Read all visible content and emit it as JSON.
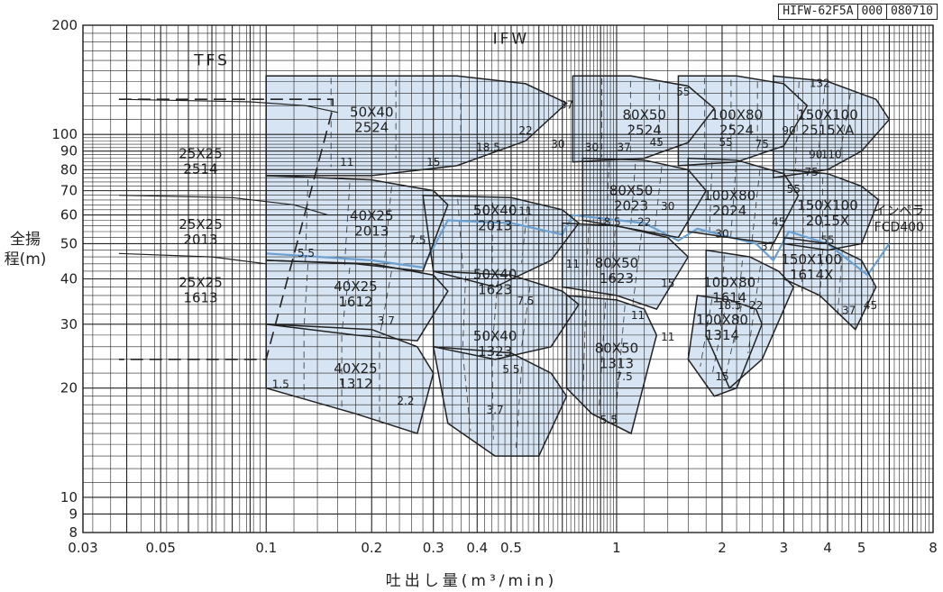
{
  "chart_data": {
    "type": "area",
    "drawing_code": [
      "HIFW-62F5A",
      "000",
      "080710"
    ],
    "ylabel": "全揚程(m)",
    "xlabel": "吐出し量(m³/min)",
    "x_scale": "log",
    "y_scale": "log",
    "xlim": [
      0.03,
      8
    ],
    "ylim": [
      8,
      200
    ],
    "grid": true,
    "x_ticks": [
      0.03,
      0.05,
      0.1,
      0.2,
      0.3,
      0.4,
      0.5,
      1,
      2,
      3,
      4,
      5,
      8
    ],
    "x_tick_labels": [
      "0.03",
      "0.05",
      "0.1",
      "0.2",
      "0.3",
      "0.4",
      "0.5",
      "1",
      "2",
      "3",
      "4",
      "5",
      "8"
    ],
    "y_ticks": [
      8,
      9,
      10,
      20,
      30,
      40,
      50,
      60,
      70,
      80,
      90,
      100,
      200
    ],
    "y_tick_labels": [
      "8",
      "9",
      "10",
      "20",
      "30",
      "40",
      "50",
      "60",
      "70",
      "80",
      "90",
      "100",
      "200"
    ],
    "series_labels": [
      "TFS",
      "IFW"
    ],
    "note": [
      "インペラ",
      "FCD400"
    ],
    "colors": {
      "fill": "#d6e4f3",
      "line": "#222222",
      "accent": "#6a9fd0"
    },
    "tfs_envelope": [
      [
        0.038,
        125
      ],
      [
        0.155,
        125
      ],
      [
        0.155,
        118
      ],
      [
        0.1,
        24
      ],
      [
        0.038,
        24
      ]
    ],
    "tfs_models": [
      {
        "label": [
          "25X25",
          "2514"
        ],
        "pos": [
          0.065,
          86
        ],
        "curve": [
          [
            0.038,
            125
          ],
          [
            0.09,
            123
          ],
          [
            0.13,
            120
          ],
          [
            0.16,
            115
          ]
        ]
      },
      {
        "label": [
          "25X25",
          "2013"
        ],
        "pos": [
          0.065,
          55
        ],
        "curve": [
          [
            0.038,
            68
          ],
          [
            0.08,
            67
          ],
          [
            0.12,
            64
          ],
          [
            0.15,
            60
          ]
        ]
      },
      {
        "label": [
          "25X25",
          "1613"
        ],
        "pos": [
          0.065,
          38
        ],
        "curve": [
          [
            0.038,
            47
          ],
          [
            0.07,
            46
          ],
          [
            0.1,
            44
          ]
        ]
      }
    ],
    "regions": [
      {
        "label": [
          "50X40",
          "2524"
        ],
        "pos": [
          0.2,
          112
        ],
        "poly": [
          [
            0.1,
            145
          ],
          [
            0.35,
            145
          ],
          [
            0.55,
            138
          ],
          [
            0.72,
            122
          ],
          [
            0.55,
            96
          ],
          [
            0.35,
            82
          ],
          [
            0.2,
            77
          ],
          [
            0.1,
            77
          ]
        ]
      },
      {
        "label": [
          "40X25",
          "2013"
        ],
        "pos": [
          0.2,
          58
        ],
        "poly": [
          [
            0.1,
            77
          ],
          [
            0.2,
            75
          ],
          [
            0.3,
            70
          ],
          [
            0.33,
            64
          ],
          [
            0.28,
            42
          ],
          [
            0.18,
            44
          ],
          [
            0.1,
            45
          ]
        ]
      },
      {
        "label": [
          "40X25",
          "1612"
        ],
        "pos": [
          0.18,
          37
        ],
        "poly": [
          [
            0.1,
            45
          ],
          [
            0.2,
            44
          ],
          [
            0.3,
            41
          ],
          [
            0.33,
            37
          ],
          [
            0.27,
            27
          ],
          [
            0.18,
            28
          ],
          [
            0.1,
            30
          ]
        ]
      },
      {
        "label": [
          "40X25",
          "1312"
        ],
        "pos": [
          0.18,
          22
        ],
        "poly": [
          [
            0.1,
            30
          ],
          [
            0.2,
            29
          ],
          [
            0.27,
            26
          ],
          [
            0.3,
            22
          ],
          [
            0.27,
            15
          ],
          [
            0.18,
            17
          ],
          [
            0.1,
            20
          ]
        ]
      },
      {
        "label": [
          "50X40",
          "2013"
        ],
        "pos": [
          0.45,
          60
        ],
        "poly": [
          [
            0.28,
            68
          ],
          [
            0.5,
            67
          ],
          [
            0.7,
            62
          ],
          [
            0.78,
            57
          ],
          [
            0.65,
            45
          ],
          [
            0.45,
            38
          ],
          [
            0.3,
            42
          ]
        ]
      },
      {
        "label": [
          "50X40",
          "1623"
        ],
        "pos": [
          0.45,
          40
        ],
        "poly": [
          [
            0.3,
            42
          ],
          [
            0.5,
            41
          ],
          [
            0.7,
            37
          ],
          [
            0.78,
            34
          ],
          [
            0.65,
            26
          ],
          [
            0.45,
            24
          ],
          [
            0.3,
            26
          ]
        ]
      },
      {
        "label": [
          "50X40",
          "1323"
        ],
        "pos": [
          0.45,
          27
        ],
        "poly": [
          [
            0.3,
            26
          ],
          [
            0.5,
            25
          ],
          [
            0.65,
            22
          ],
          [
            0.72,
            19
          ],
          [
            0.6,
            13
          ],
          [
            0.45,
            13
          ],
          [
            0.33,
            16
          ]
        ]
      },
      {
        "label": [
          "80X50",
          "2524"
        ],
        "pos": [
          1.2,
          110
        ],
        "poly": [
          [
            0.75,
            145
          ],
          [
            1.1,
            145
          ],
          [
            1.6,
            136
          ],
          [
            1.9,
            118
          ],
          [
            1.6,
            95
          ],
          [
            1.2,
            86
          ],
          [
            0.75,
            84
          ]
        ]
      },
      {
        "label": [
          "80X50",
          "2023"
        ],
        "pos": [
          1.1,
          68
        ],
        "poly": [
          [
            0.8,
            86
          ],
          [
            1.2,
            85
          ],
          [
            1.6,
            80
          ],
          [
            1.8,
            70
          ],
          [
            1.5,
            52
          ],
          [
            1.1,
            55
          ],
          [
            0.8,
            58
          ]
        ]
      },
      {
        "label": [
          "80X50",
          "1623"
        ],
        "pos": [
          1.0,
          43
        ],
        "poly": [
          [
            0.7,
            57
          ],
          [
            1.0,
            56
          ],
          [
            1.4,
            52
          ],
          [
            1.6,
            46
          ],
          [
            1.3,
            33
          ],
          [
            1.0,
            36
          ],
          [
            0.7,
            38
          ]
        ]
      },
      {
        "label": [
          "80X50",
          "1313"
        ],
        "pos": [
          1.0,
          25
        ],
        "poly": [
          [
            0.72,
            36
          ],
          [
            1.0,
            35
          ],
          [
            1.2,
            33
          ],
          [
            1.3,
            28
          ],
          [
            1.1,
            15
          ],
          [
            0.85,
            17
          ],
          [
            0.72,
            20
          ]
        ]
      },
      {
        "label": [
          "100X80",
          "2524"
        ],
        "pos": [
          2.2,
          110
        ],
        "poly": [
          [
            1.5,
            145
          ],
          [
            2.2,
            145
          ],
          [
            3.0,
            138
          ],
          [
            3.5,
            120
          ],
          [
            3.0,
            93
          ],
          [
            2.2,
            84
          ],
          [
            1.5,
            82
          ]
        ]
      },
      {
        "label": [
          "100X80",
          "2024"
        ],
        "pos": [
          2.1,
          66
        ],
        "poly": [
          [
            1.6,
            86
          ],
          [
            2.2,
            85
          ],
          [
            3.0,
            78
          ],
          [
            3.3,
            68
          ],
          [
            2.8,
            50
          ],
          [
            2.1,
            52
          ],
          [
            1.6,
            54
          ]
        ]
      },
      {
        "label": [
          "100X80",
          "1614"
        ],
        "pos": [
          2.1,
          38
        ],
        "poly": [
          [
            1.8,
            48
          ],
          [
            2.4,
            46
          ],
          [
            2.9,
            42
          ],
          [
            3.2,
            38
          ],
          [
            2.6,
            24
          ],
          [
            2.1,
            20
          ],
          [
            1.8,
            28
          ]
        ]
      },
      {
        "label": [
          "100X80",
          "1314"
        ],
        "pos": [
          2.0,
          30
        ],
        "poly": [
          [
            1.7,
            36
          ],
          [
            2.1,
            35
          ],
          [
            2.5,
            33
          ],
          [
            2.6,
            30
          ],
          [
            2.2,
            20
          ],
          [
            1.9,
            19
          ],
          [
            1.6,
            24
          ]
        ]
      },
      {
        "label": [
          "150X100",
          "2515XA"
        ],
        "pos": [
          4.0,
          110
        ],
        "poly": [
          [
            2.8,
            145
          ],
          [
            4.0,
            140
          ],
          [
            5.5,
            125
          ],
          [
            6.0,
            110
          ],
          [
            5.0,
            90
          ],
          [
            4.0,
            80
          ],
          [
            2.8,
            76
          ]
        ]
      },
      {
        "label": [
          "150X100",
          "2015X"
        ],
        "pos": [
          4.0,
          62
        ],
        "poly": [
          [
            3.0,
            80
          ],
          [
            4.0,
            78
          ],
          [
            5.0,
            72
          ],
          [
            5.6,
            66
          ],
          [
            5.0,
            50
          ],
          [
            4.0,
            48
          ],
          [
            3.0,
            50
          ]
        ]
      },
      {
        "label": [
          "150X100",
          "1614X"
        ],
        "pos": [
          3.6,
          44
        ],
        "poly": [
          [
            3.0,
            52
          ],
          [
            4.0,
            50
          ],
          [
            5.0,
            45
          ],
          [
            5.5,
            38
          ],
          [
            4.8,
            29
          ],
          [
            3.8,
            36
          ],
          [
            3.0,
            40
          ]
        ]
      }
    ],
    "efficiency_labels": [
      {
        "text": "11",
        "at": [
          0.17,
          82
        ]
      },
      {
        "text": "15",
        "at": [
          0.3,
          82
        ]
      },
      {
        "text": "18.5",
        "at": [
          0.43,
          90
        ]
      },
      {
        "text": "22",
        "at": [
          0.55,
          100
        ]
      },
      {
        "text": "30",
        "at": [
          0.68,
          92
        ]
      },
      {
        "text": "37",
        "at": [
          0.72,
          118
        ]
      },
      {
        "text": "7.5",
        "at": [
          0.27,
          50
        ]
      },
      {
        "text": "5.5",
        "at": [
          0.13,
          46
        ]
      },
      {
        "text": "11",
        "at": [
          0.55,
          60
        ]
      },
      {
        "text": "11",
        "at": [
          0.75,
          43
        ]
      },
      {
        "text": "7.5",
        "at": [
          0.55,
          34
        ]
      },
      {
        "text": "3.7",
        "at": [
          0.22,
          30
        ]
      },
      {
        "text": "5.5",
        "at": [
          0.5,
          22
        ]
      },
      {
        "text": "2.2",
        "at": [
          0.25,
          18
        ]
      },
      {
        "text": "1.5",
        "at": [
          0.11,
          20
        ]
      },
      {
        "text": "3.7",
        "at": [
          0.45,
          17
        ]
      },
      {
        "text": "30",
        "at": [
          0.85,
          90
        ]
      },
      {
        "text": "37",
        "at": [
          1.05,
          90
        ]
      },
      {
        "text": "45",
        "at": [
          1.3,
          93
        ]
      },
      {
        "text": "55",
        "at": [
          1.55,
          128
        ]
      },
      {
        "text": "18.5",
        "at": [
          0.95,
          56
        ]
      },
      {
        "text": "22",
        "at": [
          1.2,
          56
        ]
      },
      {
        "text": "30",
        "at": [
          1.4,
          62
        ]
      },
      {
        "text": "15",
        "at": [
          1.4,
          38
        ]
      },
      {
        "text": "11",
        "at": [
          1.15,
          31
        ]
      },
      {
        "text": "11",
        "at": [
          1.4,
          27
        ]
      },
      {
        "text": "7.5",
        "at": [
          1.05,
          21
        ]
      },
      {
        "text": "5.5",
        "at": [
          0.95,
          16
        ]
      },
      {
        "text": "55",
        "at": [
          2.05,
          93
        ]
      },
      {
        "text": "75",
        "at": [
          2.6,
          92
        ]
      },
      {
        "text": "90",
        "at": [
          3.1,
          100
        ]
      },
      {
        "text": "30",
        "at": [
          2.0,
          52
        ]
      },
      {
        "text": "37",
        "at": [
          2.7,
          48
        ]
      },
      {
        "text": "45",
        "at": [
          2.9,
          56
        ]
      },
      {
        "text": "22",
        "at": [
          2.5,
          33
        ]
      },
      {
        "text": "18.5",
        "at": [
          2.1,
          33
        ]
      },
      {
        "text": "15",
        "at": [
          2.0,
          21
        ]
      },
      {
        "text": "132",
        "at": [
          3.8,
          135
        ]
      },
      {
        "text": "110",
        "at": [
          4.1,
          86
        ]
      },
      {
        "text": "90",
        "at": [
          3.7,
          86
        ]
      },
      {
        "text": "75",
        "at": [
          3.6,
          77
        ]
      },
      {
        "text": "55",
        "at": [
          3.2,
          69
        ]
      },
      {
        "text": "55",
        "at": [
          4.0,
          50
        ]
      },
      {
        "text": "37",
        "at": [
          4.6,
          32
        ]
      },
      {
        "text": "45",
        "at": [
          5.3,
          33
        ]
      }
    ]
  }
}
